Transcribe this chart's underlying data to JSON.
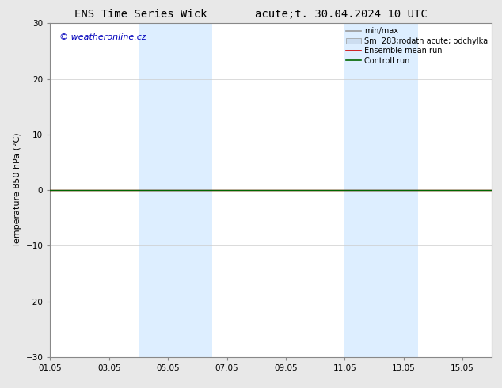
{
  "title_left": "ENS Time Series Wick",
  "title_right": "acute;t. 30.04.2024 10 UTC",
  "ylabel": "Temperature 850 hPa (°C)",
  "ylim": [
    -30,
    30
  ],
  "yticks": [
    -30,
    -20,
    -10,
    0,
    10,
    20,
    30
  ],
  "xlim": [
    0,
    15
  ],
  "xtick_labels": [
    "01.05",
    "03.05",
    "05.05",
    "07.05",
    "09.05",
    "11.05",
    "13.05",
    "15.05"
  ],
  "xtick_positions": [
    0,
    2,
    4,
    6,
    8,
    10,
    12,
    14
  ],
  "shaded_bands": [
    {
      "x_start": 3.0,
      "x_end": 5.5
    },
    {
      "x_start": 10.0,
      "x_end": 12.5
    }
  ],
  "control_run_color": "#006600",
  "ensemble_mean_color": "#cc0000",
  "minmax_color": "#999999",
  "shade_color": "#ddeeff",
  "shade_edge_color": "#bbccdd",
  "watermark_text": "© weatheronline.cz",
  "watermark_color": "#0000bb",
  "legend_labels": [
    "min/max",
    "Sm  283;rodatn acute; odchylka",
    "Ensemble mean run",
    "Controll run"
  ],
  "legend_colors": [
    "#999999",
    "#ccddf0",
    "#cc0000",
    "#006600"
  ],
  "background_color": "#ffffff",
  "plot_bg_color": "#ffffff",
  "outer_bg_color": "#e8e8e8",
  "grid_color": "#cccccc",
  "border_color": "#888888",
  "title_fontsize": 10,
  "tick_fontsize": 7.5,
  "ylabel_fontsize": 8,
  "watermark_fontsize": 8,
  "legend_fontsize": 7
}
